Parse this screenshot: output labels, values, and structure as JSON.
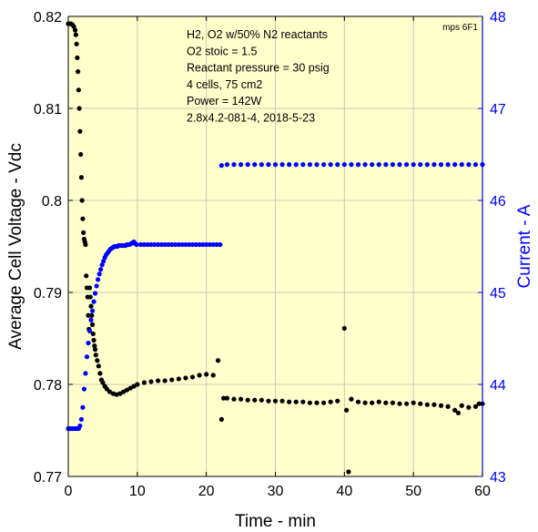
{
  "chart_data": {
    "type": "scatter",
    "xlabel": "Time - min",
    "ylabel_left": "Average Cell Voltage - Vdc",
    "ylabel_right": "Current - A",
    "xlim": [
      0,
      60
    ],
    "ylim_left": [
      0.77,
      0.82
    ],
    "ylim_right": [
      43,
      48
    ],
    "x_ticks": [
      0,
      10,
      20,
      30,
      40,
      50,
      60
    ],
    "y_left_ticks": [
      0.77,
      0.78,
      0.79,
      0.8,
      0.81,
      0.82
    ],
    "y_right_ticks": [
      43,
      44,
      45,
      46,
      47,
      48
    ],
    "grid": true,
    "background_color": "#ffffcc",
    "corner_note": "mps 6F1",
    "annotation_lines": [
      "H2, O2 w/50% N2 reactants",
      "O2 stoic = 1.5",
      "Reactant pressure = 30 psig",
      "4 cells, 75 cm2",
      "Power = 142W",
      "2.8x4.2-081-4,  2018-5-23"
    ],
    "series": [
      {
        "axis": "left",
        "color": "#000000",
        "x": [
          0,
          0.2,
          0.4,
          0.6,
          0.8,
          1.0,
          1.1,
          1.2,
          1.3,
          1.4,
          1.5,
          1.6,
          1.7,
          1.8,
          1.9,
          2.0,
          2.1,
          2.2,
          2.3,
          2.4,
          2.5,
          2.6,
          2.7,
          2.8,
          2.9,
          3.0,
          3.1,
          3.2,
          3.3,
          3.4,
          3.5,
          3.6,
          3.7,
          3.8,
          3.9,
          4.0,
          4.2,
          4.4,
          4.6,
          4.8,
          5.0,
          5.3,
          5.6,
          6.0,
          6.5,
          7.0,
          7.5,
          8.0,
          8.5,
          9.0,
          9.5,
          10,
          11,
          12,
          13,
          14,
          15,
          16,
          17,
          18,
          19,
          20,
          21,
          21.7,
          22.2,
          22.5,
          23,
          24,
          25,
          26,
          27,
          28,
          29,
          30,
          31,
          32,
          33,
          34,
          35,
          36,
          37,
          38,
          39,
          40,
          40.3,
          40.6,
          41,
          42,
          43,
          44,
          45,
          46,
          47,
          48,
          49,
          50,
          51,
          52,
          53,
          54,
          55,
          56,
          56.5,
          57,
          58,
          59,
          59.5,
          60
        ],
        "values": [
          0.8192,
          0.8192,
          0.8192,
          0.8191,
          0.8189,
          0.8185,
          0.818,
          0.817,
          0.8155,
          0.814,
          0.812,
          0.81,
          0.8075,
          0.805,
          0.8025,
          0.8,
          0.798,
          0.7965,
          0.7958,
          0.7955,
          0.7952,
          0.7918,
          0.7905,
          0.7895,
          0.7875,
          0.786,
          0.7905,
          0.7895,
          0.7885,
          0.7875,
          0.7865,
          0.7855,
          0.7848,
          0.7842,
          0.7838,
          0.7832,
          0.7826,
          0.782,
          0.7812,
          0.7805,
          0.7802,
          0.7798,
          0.7795,
          0.7792,
          0.779,
          0.7789,
          0.779,
          0.7792,
          0.7794,
          0.7796,
          0.7798,
          0.78,
          0.7802,
          0.7803,
          0.7804,
          0.7804,
          0.7805,
          0.7806,
          0.7807,
          0.7808,
          0.781,
          0.7811,
          0.781,
          0.7826,
          0.7762,
          0.7785,
          0.7785,
          0.7784,
          0.7784,
          0.7783,
          0.7783,
          0.7783,
          0.7782,
          0.7782,
          0.7782,
          0.7781,
          0.7781,
          0.7781,
          0.778,
          0.778,
          0.778,
          0.7781,
          0.7782,
          0.7861,
          0.7772,
          0.7705,
          0.7784,
          0.7781,
          0.778,
          0.778,
          0.7781,
          0.778,
          0.778,
          0.7779,
          0.7779,
          0.778,
          0.7779,
          0.7778,
          0.7778,
          0.7777,
          0.7776,
          0.7772,
          0.7769,
          0.7777,
          0.7775,
          0.7776,
          0.7779,
          0.7779
        ]
      },
      {
        "axis": "right",
        "color": "#0000ff",
        "x": [
          0,
          0.3,
          0.6,
          0.9,
          1.2,
          1.5,
          1.7,
          1.9,
          2.1,
          2.3,
          2.5,
          2.7,
          2.9,
          3.1,
          3.3,
          3.5,
          3.7,
          3.9,
          4.1,
          4.3,
          4.5,
          4.7,
          4.9,
          5.1,
          5.3,
          5.5,
          5.7,
          5.9,
          6.1,
          6.3,
          6.5,
          6.7,
          6.9,
          7.1,
          7.3,
          7.5,
          7.7,
          7.9,
          8.1,
          8.3,
          8.5,
          8.7,
          8.9,
          9.1,
          9.3,
          9.5,
          9.7,
          9.9,
          10.5,
          11,
          11.5,
          12,
          12.5,
          13,
          13.5,
          14,
          14.5,
          15,
          15.5,
          16,
          16.5,
          17,
          17.5,
          18,
          18.5,
          19,
          19.5,
          20,
          20.5,
          21,
          21.5,
          22,
          22.2,
          23,
          24,
          25,
          26,
          27,
          28,
          29,
          30,
          31,
          32,
          33,
          34,
          35,
          36,
          37,
          38,
          39,
          40,
          41,
          42,
          43,
          44,
          45,
          46,
          47,
          48,
          49,
          50,
          51,
          52,
          53,
          54,
          55,
          56,
          57,
          58,
          59,
          60
        ],
        "values": [
          43.52,
          43.52,
          43.52,
          43.52,
          43.52,
          43.52,
          43.55,
          43.62,
          43.75,
          43.95,
          44.12,
          44.3,
          44.45,
          44.58,
          44.7,
          44.8,
          44.9,
          44.99,
          45.07,
          45.14,
          45.2,
          45.25,
          45.3,
          45.34,
          45.38,
          45.41,
          45.43,
          45.45,
          45.47,
          45.48,
          45.49,
          45.5,
          45.5,
          45.5,
          45.51,
          45.51,
          45.51,
          45.51,
          45.51,
          45.51,
          45.52,
          45.52,
          45.52,
          45.53,
          45.54,
          45.55,
          45.53,
          45.52,
          45.52,
          45.52,
          45.52,
          45.52,
          45.52,
          45.52,
          45.52,
          45.52,
          45.52,
          45.52,
          45.52,
          45.52,
          45.52,
          45.52,
          45.52,
          45.52,
          45.52,
          45.52,
          45.52,
          45.52,
          45.52,
          45.52,
          45.52,
          45.52,
          46.38,
          46.39,
          46.39,
          46.39,
          46.39,
          46.39,
          46.39,
          46.39,
          46.39,
          46.39,
          46.39,
          46.39,
          46.39,
          46.39,
          46.39,
          46.39,
          46.39,
          46.39,
          46.39,
          46.39,
          46.39,
          46.39,
          46.39,
          46.39,
          46.39,
          46.39,
          46.39,
          46.39,
          46.39,
          46.39,
          46.39,
          46.39,
          46.39,
          46.39,
          46.39,
          46.39,
          46.39,
          46.39,
          46.39
        ]
      }
    ]
  }
}
